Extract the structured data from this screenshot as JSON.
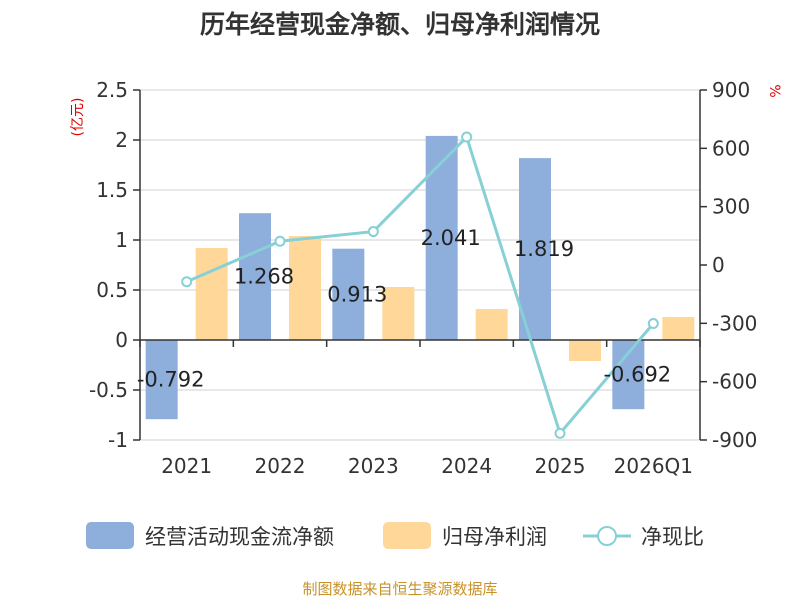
{
  "chart_data": {
    "type": "bar",
    "title": "历年经营现金净额、归母净利润情况",
    "categories": [
      "2021",
      "2022",
      "2023",
      "2024",
      "2025",
      "2026Q1"
    ],
    "series": [
      {
        "name": "经营活动现金流净额",
        "type": "bar",
        "axis": "left",
        "color": "#8eaedb",
        "values": [
          -0.792,
          1.268,
          0.913,
          2.041,
          1.819,
          -0.692
        ]
      },
      {
        "name": "归母净利润",
        "type": "bar",
        "axis": "left",
        "color": "#ffd899",
        "values": [
          0.92,
          1.04,
          0.53,
          0.31,
          -0.21,
          0.23
        ]
      },
      {
        "name": "净现比",
        "type": "line",
        "axis": "right",
        "color": "#86d0d6",
        "values": [
          -86,
          122,
          172,
          658,
          -866,
          -301
        ]
      }
    ],
    "data_labels": [
      "-0.792",
      "1.268",
      "0.913",
      "2.041",
      "1.819",
      "-0.692"
    ],
    "left_axis": {
      "unit": "(亿元)",
      "ylim": [
        -1,
        2.5
      ],
      "ticks": [
        2.5,
        2,
        1.5,
        1,
        0.5,
        0,
        -0.5,
        -1
      ],
      "tick_labels": [
        "2.5",
        "2",
        "1.5",
        "1",
        "0.5",
        "0",
        "-0.5",
        "-1"
      ]
    },
    "right_axis": {
      "unit": "%",
      "ylim": [
        -900,
        900
      ],
      "ticks": [
        900,
        600,
        300,
        0,
        -300,
        -600,
        -900
      ],
      "tick_labels": [
        "900",
        "600",
        "300",
        "0",
        "-300",
        "-600",
        "-900"
      ]
    },
    "grid": true,
    "legend_position": "bottom",
    "source": "制图数据来自恒生聚源数据库"
  }
}
